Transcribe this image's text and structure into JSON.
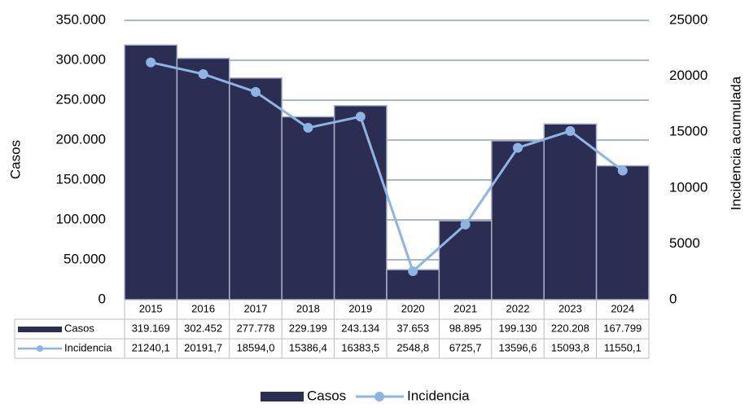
{
  "chart_data": {
    "type": "bar_line",
    "categories": [
      "2015",
      "2016",
      "2017",
      "2018",
      "2019",
      "2020",
      "2021",
      "2022",
      "2023",
      "2024"
    ],
    "y_label": "Casos",
    "y2_label": "Incidencia acumulada",
    "series": [
      {
        "name": "Casos",
        "type": "bar",
        "color": "#2b2d52",
        "values": [
          319169,
          302452,
          277778,
          229199,
          243134,
          37653,
          98895,
          199130,
          220208,
          167799
        ],
        "value_labels": [
          "319.169",
          "302.452",
          "277.778",
          "229.199",
          "243.134",
          "37.653",
          "98.895",
          "199.130",
          "220.208",
          "167.799"
        ]
      },
      {
        "name": "Incidencia",
        "type": "line",
        "axis": "y2",
        "color": "#8eb4e3",
        "values": [
          21240.1,
          20191.7,
          18594.0,
          15386.4,
          16383.5,
          2548.8,
          6725.7,
          13596.6,
          15093.8,
          11550.1
        ],
        "value_labels": [
          "21240,1",
          "20191,7",
          "18594,0",
          "15386,4",
          "16383,5",
          "2548,8",
          "6725,7",
          "13596,6",
          "15093,8",
          "11550,1"
        ]
      }
    ],
    "ylim": [
      0,
      350000
    ],
    "yticks": [
      0,
      {
        "value": 50000,
        "label": "50.000"
      },
      {
        "value": 100000,
        "label": "100.000"
      },
      {
        "value": 150000,
        "label": "150.000"
      },
      {
        "value": 200000,
        "label": "200.000"
      },
      {
        "value": 250000,
        "label": "250.000"
      },
      {
        "value": 300000,
        "label": "300.000"
      },
      {
        "value": 350000,
        "label": "350.000"
      }
    ],
    "y2lim": [
      0,
      25000
    ],
    "y2ticks": [
      0,
      5000,
      10000,
      15000,
      20000,
      25000
    ],
    "grid": true
  }
}
